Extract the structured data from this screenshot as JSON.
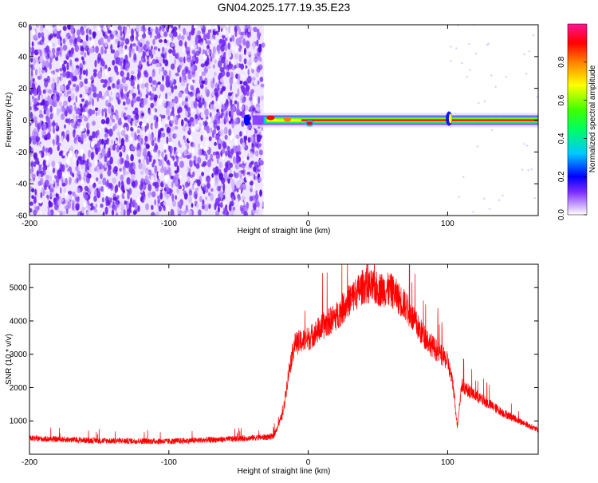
{
  "figure": {
    "title": "GN04.2025.177.19.35.E23"
  },
  "chart_data": [
    {
      "type": "heatmap",
      "name": "spectrogram",
      "xlabel": "Height of straight line (km)",
      "ylabel": "Frequency (Hz)",
      "xlim": [
        -200,
        165
      ],
      "ylim": [
        -60,
        60
      ],
      "xticks": [
        -200,
        -100,
        0,
        100
      ],
      "yticks": [
        -60,
        -40,
        -20,
        0,
        20,
        40,
        60
      ],
      "colorbar": {
        "label": "Normalized spectral amplitude",
        "range": [
          0,
          1
        ],
        "ticks": [
          "0.0",
          "0.2",
          "0.4",
          "0.6",
          "0.8"
        ],
        "colormap": [
          "#ffffff",
          "#7a2cff",
          "#0000ff",
          "#00c8ff",
          "#00ff00",
          "#ffff00",
          "#ff8000",
          "#ff0000",
          "#ff1493"
        ]
      },
      "noise_region_x": [
        -200,
        -32
      ],
      "signal_band": {
        "x_start": -40,
        "x_end": 165,
        "frequency_hz": 0,
        "peak_color": "#ff0000"
      }
    },
    {
      "type": "line",
      "name": "snr",
      "xlabel": "Height of straight line (km)",
      "ylabel": "SNR (10 * v/v)",
      "xlim": [
        -200,
        165
      ],
      "ylim": [
        0,
        5700
      ],
      "xticks": [
        -200,
        -100,
        0,
        100
      ],
      "yticks": [
        1000,
        2000,
        3000,
        4000,
        5000
      ],
      "line_color": "#ff0000",
      "envelope": [
        {
          "x": -200,
          "y": 450
        },
        {
          "x": -150,
          "y": 380
        },
        {
          "x": -100,
          "y": 360
        },
        {
          "x": -60,
          "y": 420
        },
        {
          "x": -25,
          "y": 500
        },
        {
          "x": -18,
          "y": 1200
        },
        {
          "x": -14,
          "y": 2400
        },
        {
          "x": -10,
          "y": 3200
        },
        {
          "x": 0,
          "y": 3350
        },
        {
          "x": 10,
          "y": 3700
        },
        {
          "x": 20,
          "y": 4000
        },
        {
          "x": 30,
          "y": 4500
        },
        {
          "x": 40,
          "y": 4900
        },
        {
          "x": 50,
          "y": 4800
        },
        {
          "x": 60,
          "y": 4750
        },
        {
          "x": 70,
          "y": 4300
        },
        {
          "x": 80,
          "y": 3600
        },
        {
          "x": 90,
          "y": 3100
        },
        {
          "x": 100,
          "y": 2700
        },
        {
          "x": 104,
          "y": 2000
        },
        {
          "x": 107,
          "y": 800
        },
        {
          "x": 110,
          "y": 2000
        },
        {
          "x": 120,
          "y": 1700
        },
        {
          "x": 140,
          "y": 1200
        },
        {
          "x": 165,
          "y": 700
        }
      ]
    }
  ]
}
